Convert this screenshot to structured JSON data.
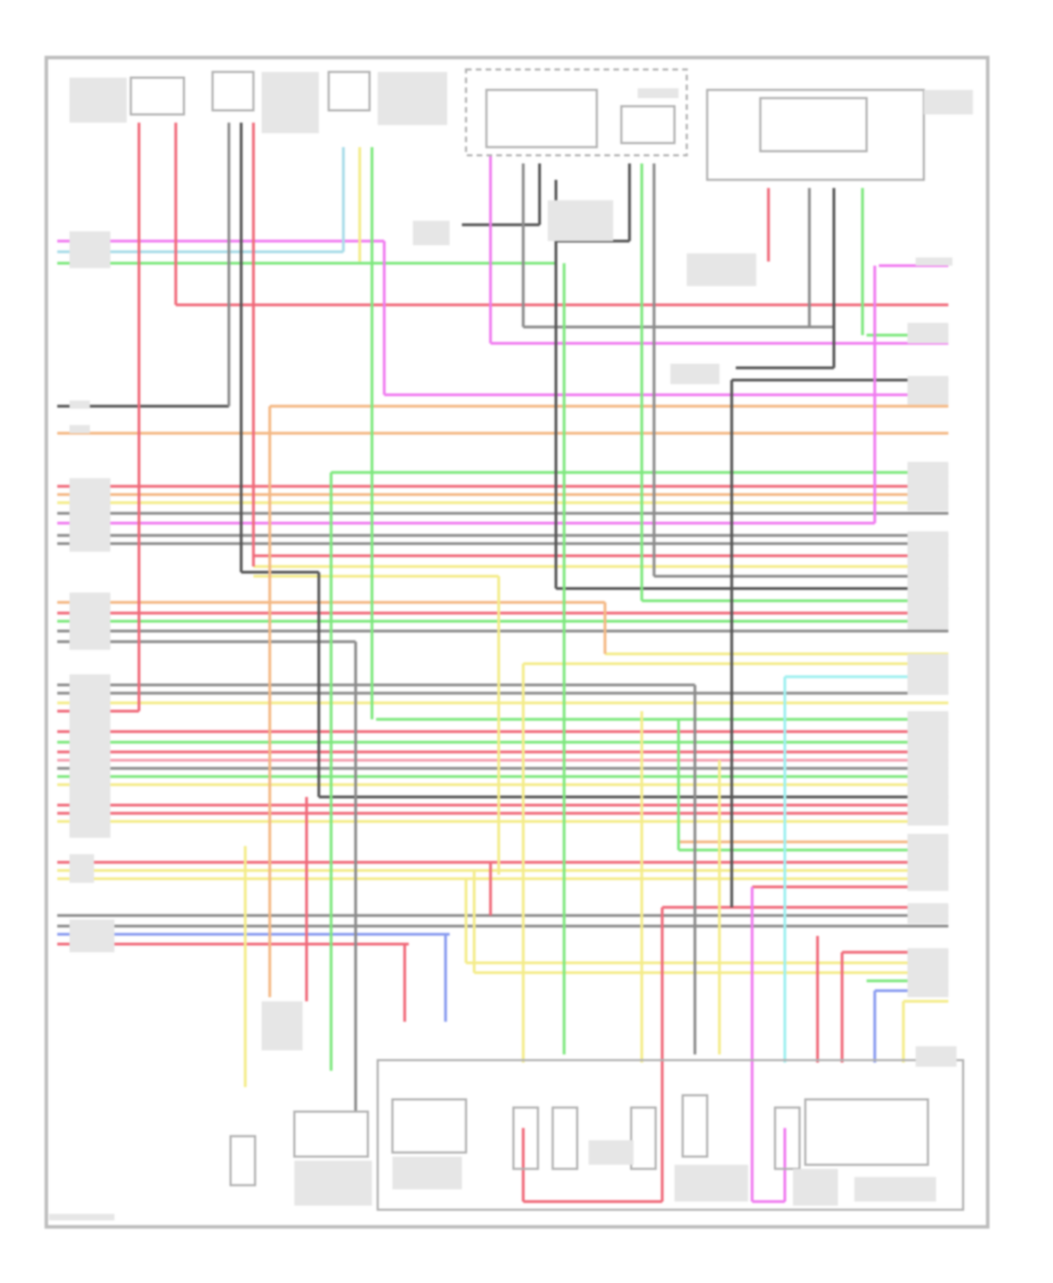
{
  "diagram": {
    "type": "wiring-schematic",
    "legibility": "labels-unreadable",
    "wire_colors": {
      "red": "#f06a7a",
      "pink": "#f5a0b0",
      "magenta": "#f07cf0",
      "green": "#7ee87e",
      "lightblue": "#a8dce8",
      "cyan": "#9ff0f0",
      "blue": "#8a9cf0",
      "yellow": "#f4ec8a",
      "orange": "#f4b884",
      "gray": "#8c8c8c",
      "dark": "#555555",
      "tan": "#e0d0a0"
    },
    "frame_color": "#bdbdbd",
    "components": [
      {
        "id": "sensor-top-1",
        "position": "top"
      },
      {
        "id": "sensor-top-2",
        "position": "top"
      },
      {
        "id": "sensor-top-3",
        "position": "top"
      },
      {
        "id": "fuel-tank-module",
        "position": "top"
      },
      {
        "id": "pressure-sensor",
        "position": "top"
      },
      {
        "id": "relay-box",
        "position": "top-right"
      },
      {
        "id": "control-module-connector",
        "position": "center"
      },
      {
        "id": "sensor-bottom-1",
        "position": "bottom"
      },
      {
        "id": "sensor-bottom-2",
        "position": "bottom"
      },
      {
        "id": "valve-assembly",
        "position": "bottom"
      },
      {
        "id": "solenoid-1",
        "position": "bottom"
      },
      {
        "id": "solenoid-2",
        "position": "bottom"
      },
      {
        "id": "solenoid-3",
        "position": "bottom"
      },
      {
        "id": "solenoid-4",
        "position": "bottom"
      },
      {
        "id": "solenoid-5",
        "position": "bottom"
      },
      {
        "id": "switch-assembly",
        "position": "bottom-right"
      }
    ]
  }
}
